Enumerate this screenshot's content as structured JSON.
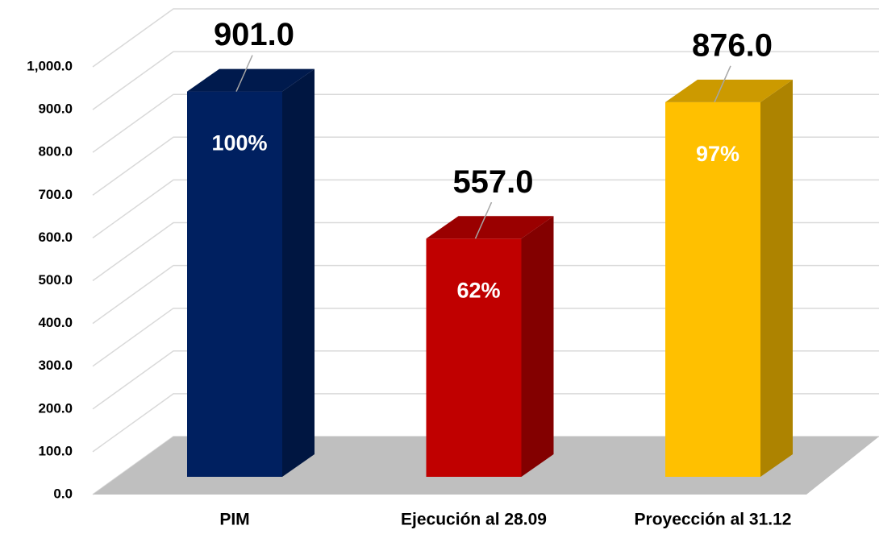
{
  "chart_data": {
    "type": "bar3d",
    "categories": [
      "PIM",
      "Ejecución al 28.09",
      "Proyección al 31.12"
    ],
    "values": [
      901,
      557,
      876
    ],
    "value_labels": [
      "901.0",
      "557.0",
      "876.0"
    ],
    "bar_labels": [
      "100%",
      "62%",
      "97%"
    ],
    "colors": [
      "#002060",
      "#c00000",
      "#ffc000"
    ],
    "ylim": [
      0,
      1000
    ],
    "yticks": [
      {
        "value": 0,
        "label": "0.0"
      },
      {
        "value": 100,
        "label": "100.0"
      },
      {
        "value": 200,
        "label": "200.0"
      },
      {
        "value": 300,
        "label": "300.0"
      },
      {
        "value": 400,
        "label": "400.0"
      },
      {
        "value": 500,
        "label": "500.0"
      },
      {
        "value": 600,
        "label": "600.0"
      },
      {
        "value": 700,
        "label": "700.0"
      },
      {
        "value": 800,
        "label": "800.0"
      },
      {
        "value": 900,
        "label": "900.0"
      },
      {
        "value": 1000,
        "label": "1,000.0"
      }
    ],
    "grid": true
  }
}
